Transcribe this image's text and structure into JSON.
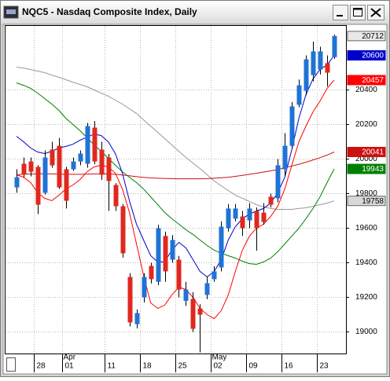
{
  "chart_data": {
    "type": "candlestick",
    "title": "NQC5 - Nasdaq Composite Index, Daily",
    "categories": [
      null,
      null,
      null,
      "28",
      null,
      null,
      null,
      "01",
      null,
      null,
      null,
      null,
      null,
      "11",
      null,
      null,
      null,
      null,
      "18",
      null,
      null,
      null,
      null,
      "25",
      null,
      null,
      null,
      null,
      "02",
      null,
      null,
      null,
      null,
      "09",
      null,
      null,
      null,
      null,
      "16",
      null,
      null,
      null,
      null,
      "23",
      null,
      null
    ],
    "month_labels": [
      null,
      null,
      null,
      null,
      null,
      null,
      null,
      "Apr",
      null,
      null,
      null,
      null,
      null,
      null,
      null,
      null,
      null,
      null,
      null,
      null,
      null,
      null,
      null,
      null,
      null,
      null,
      null,
      null,
      "May",
      null,
      null,
      null,
      null,
      null,
      null,
      null,
      null,
      null,
      null,
      null,
      null,
      null,
      null,
      null,
      null,
      null
    ],
    "open": [
      19836,
      19973,
      19986,
      19955,
      19805,
      20055,
      20077,
      19941,
      19941,
      19986,
      19973,
      20182,
      20055,
      20009,
      19850,
      19727,
      19318,
      19045,
      19200,
      19382,
      19290,
      19555,
      19418,
      19418,
      19180,
      19191,
      19136,
      19214,
      19305,
      19373,
      19600,
      19655,
      19668,
      19645,
      19700,
      19690,
      19782,
      19773,
      19941,
      20077,
      20314,
      20395,
      20486,
      20518,
      20555,
      20590
    ],
    "high": [
      19941,
      20009,
      20009,
      19964,
      20050,
      20100,
      20123,
      19955,
      20009,
      20050,
      20209,
      20220,
      20100,
      20030,
      19860,
      19740,
      19340,
      19130,
      19340,
      19400,
      19620,
      19580,
      19560,
      19440,
      19290,
      19230,
      19160,
      19320,
      19380,
      19640,
      19740,
      19740,
      19700,
      19745,
      19720,
      19745,
      19800,
      20000,
      20150,
      20330,
      20460,
      20600,
      20680,
      20650,
      20600,
      20720
    ],
    "low": [
      19805,
      19895,
      19900,
      19682,
      19795,
      19950,
      19827,
      19714,
      19932,
      19964,
      19950,
      19970,
      19880,
      19700,
      19700,
      19430,
      19032,
      19020,
      19170,
      19280,
      19270,
      19290,
      19400,
      19200,
      19150,
      19000,
      18882,
      19190,
      19290,
      19350,
      19580,
      19640,
      19555,
      19600,
      19470,
      19620,
      19720,
      19750,
      19900,
      20060,
      20300,
      20370,
      20450,
      20490,
      20420,
      20580
    ],
    "close": [
      19895,
      19909,
      19927,
      19736,
      20009,
      19964,
      19836,
      19759,
      19986,
      20032,
      20191,
      19986,
      19909,
      19873,
      19727,
      19455,
      19055,
      19109,
      19318,
      19305,
      19600,
      19350,
      19532,
      19245,
      19245,
      19018,
      19100,
      19282,
      19350,
      19609,
      19714,
      19714,
      19600,
      19714,
      19600,
      19636,
      19736,
      19964,
      20077,
      20305,
      20427,
      20577,
      20623,
      20623,
      20500,
      20712
    ],
    "up_color": "#1f73d6",
    "down_color": "#e0281e",
    "series": [
      {
        "color": "#999999",
        "values": [
          20532,
          20527,
          20518,
          20509,
          20500,
          20486,
          20473,
          20459,
          20445,
          20432,
          20418,
          20400,
          20382,
          20364,
          20341,
          20318,
          20291,
          20264,
          20227,
          20191,
          20155,
          20118,
          20082,
          20045,
          20009,
          19977,
          19945,
          19909,
          19873,
          19845,
          19818,
          19791,
          19773,
          19755,
          19736,
          19723,
          19714,
          19709,
          19709,
          19709,
          19714,
          19718,
          19727,
          19736,
          19745,
          19758
        ]
      },
      {
        "color": "#008000",
        "values": [
          20441,
          20427,
          20409,
          20382,
          20350,
          20318,
          20282,
          20236,
          20200,
          20164,
          20123,
          20082,
          20045,
          20005,
          19964,
          19927,
          19895,
          19864,
          19827,
          19782,
          19736,
          19691,
          19655,
          19623,
          19591,
          19564,
          19532,
          19500,
          19473,
          19455,
          19441,
          19427,
          19409,
          19395,
          19391,
          19405,
          19427,
          19464,
          19509,
          19555,
          19600,
          19655,
          19714,
          19782,
          19864,
          19943
        ]
      },
      {
        "color": "#cc1010",
        "values": [
          19909,
          19912,
          19914,
          19915,
          19915,
          19914,
          19913,
          19912,
          19912,
          19912,
          19913,
          19914,
          19915,
          19915,
          19912,
          19908,
          19903,
          19898,
          19894,
          19891,
          19889,
          19888,
          19887,
          19886,
          19886,
          19886,
          19886,
          19887,
          19889,
          19892,
          19895,
          19900,
          19906,
          19912,
          19918,
          19925,
          19932,
          19940,
          19950,
          19960,
          19970,
          19982,
          19995,
          20008,
          20023,
          20041
        ]
      },
      {
        "color": "#ff0000",
        "values": [
          19909,
          19895,
          19864,
          19805,
          19773,
          19759,
          19791,
          19827,
          19850,
          19882,
          19927,
          19955,
          19964,
          19955,
          19918,
          19827,
          19691,
          19509,
          19327,
          19168,
          19136,
          19155,
          19214,
          19259,
          19245,
          19200,
          19136,
          19100,
          19077,
          19123,
          19214,
          19350,
          19473,
          19555,
          19600,
          19623,
          19668,
          19727,
          19827,
          19964,
          20100,
          20191,
          20273,
          20336,
          20409,
          20457
        ]
      },
      {
        "color": "#0000cc",
        "values": [
          20132,
          20100,
          20064,
          20041,
          20032,
          20045,
          20064,
          20073,
          20086,
          20109,
          20127,
          20145,
          20136,
          20100,
          20032,
          19918,
          19759,
          19623,
          19532,
          19441,
          19405,
          19405,
          19473,
          19518,
          19486,
          19418,
          19350,
          19318,
          19350,
          19418,
          19532,
          19609,
          19655,
          19682,
          19700,
          19714,
          19745,
          19805,
          19895,
          20055,
          20236,
          20373,
          20464,
          20518,
          20545,
          20600
        ]
      }
    ],
    "ylim": [
      18875,
      20775
    ],
    "yticks": [
      19000,
      19200,
      19400,
      19600,
      19800,
      20000,
      20200,
      20400
    ],
    "grid": true
  }
}
